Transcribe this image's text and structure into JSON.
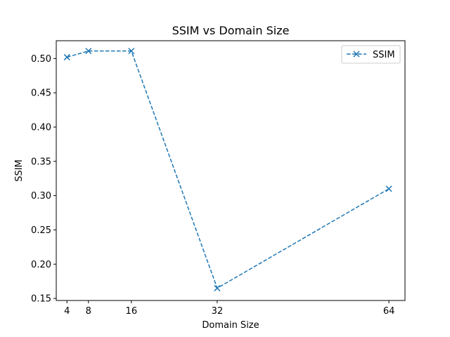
{
  "chart_data": {
    "type": "line",
    "title": "SSIM vs Domain Size",
    "xlabel": "Domain Size",
    "ylabel": "SSIM",
    "x": [
      4,
      8,
      16,
      32,
      64
    ],
    "x_ticks": [
      4,
      8,
      16,
      32,
      64
    ],
    "y_ticks": [
      0.15,
      0.2,
      0.25,
      0.3,
      0.35,
      0.4,
      0.45,
      0.5
    ],
    "xlim": [
      2,
      67
    ],
    "ylim": [
      0.147,
      0.526
    ],
    "grid": false,
    "legend_position": "top-right",
    "series": [
      {
        "name": "SSIM",
        "values": [
          0.502,
          0.511,
          0.511,
          0.165,
          0.31
        ],
        "color": "#1f77b4",
        "line_style": "dashed",
        "marker": "x"
      }
    ]
  }
}
